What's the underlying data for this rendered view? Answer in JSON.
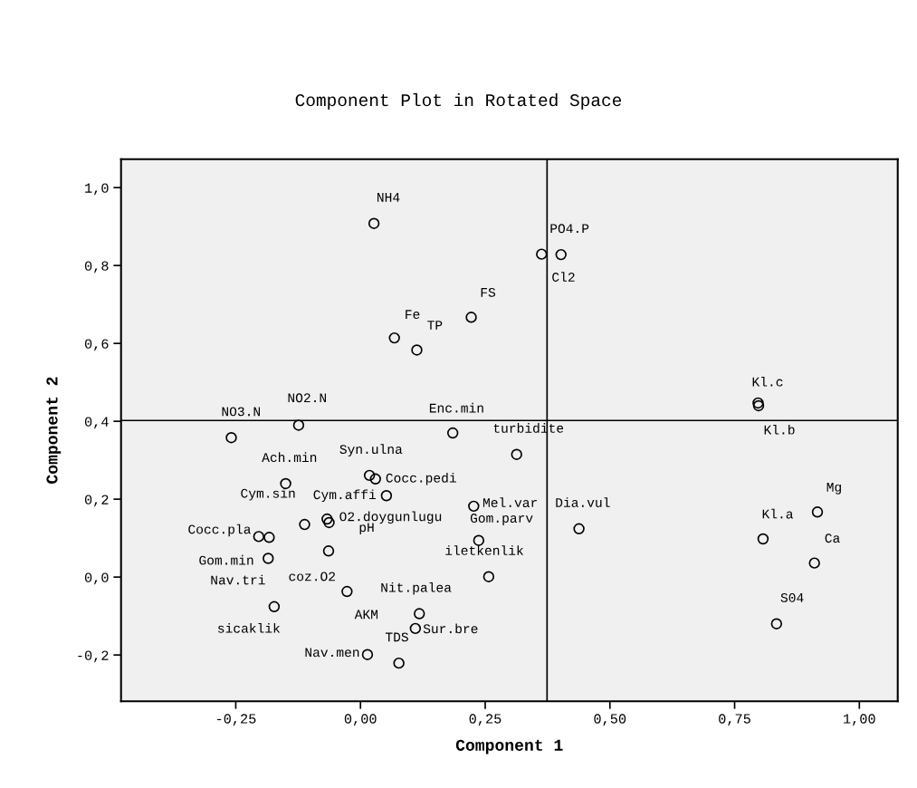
{
  "chart_data": {
    "type": "scatter",
    "title": "Component Plot in Rotated Space",
    "xlabel": "Component 1",
    "ylabel": "Component 2",
    "marker": "circle",
    "grid": false,
    "xlim": [
      -0.48,
      1.077
    ],
    "ylim": [
      -0.319,
      1.073
    ],
    "xticks": [
      {
        "value": -0.25,
        "label": "-0,25"
      },
      {
        "value": 0,
        "label": "0,00"
      },
      {
        "value": 0.25,
        "label": "0,25"
      },
      {
        "value": 0.5,
        "label": "0,50"
      },
      {
        "value": 0.75,
        "label": "0,75"
      },
      {
        "value": 1,
        "label": "1,00"
      }
    ],
    "yticks": [
      {
        "value": -0.2,
        "label": "-0,2"
      },
      {
        "value": 0,
        "label": "0,0"
      },
      {
        "value": 0.2,
        "label": "0,2"
      },
      {
        "value": 0.4,
        "label": "0,4"
      },
      {
        "value": 0.6,
        "label": "0,6"
      },
      {
        "value": 0.8,
        "label": "0,8"
      },
      {
        "value": 1,
        "label": "1,0"
      }
    ],
    "ref_lines": [
      {
        "axis": "x",
        "value": 0.374,
        "color": "#000000"
      },
      {
        "axis": "y",
        "value": 0.402,
        "color": "#000000"
      }
    ],
    "series": [
      {
        "color": "#000000",
        "x": [
          0.027,
          0.363,
          0.402,
          0.222,
          0.068,
          0.113,
          0.797,
          0.798,
          -0.259,
          -0.124,
          0.185,
          0.313,
          0.018,
          0.03,
          -0.15,
          0.052,
          0.227,
          -0.112,
          -0.063,
          -0.067,
          0.438,
          0.916,
          -0.204,
          -0.183,
          -0.185,
          0.237,
          0.807,
          -0.064,
          0.91,
          0.257,
          0.118,
          -0.027,
          0.834,
          -0.173,
          0.11,
          0.014,
          0.077
        ],
        "values": [
          0.908,
          0.829,
          0.828,
          0.667,
          0.614,
          0.583,
          0.447,
          0.44,
          0.358,
          0.39,
          0.37,
          0.315,
          0.261,
          0.252,
          0.24,
          0.209,
          0.182,
          0.135,
          0.14,
          0.149,
          0.124,
          0.167,
          0.104,
          0.102,
          0.048,
          0.094,
          0.098,
          0.067,
          0.036,
          0.001,
          -0.094,
          -0.037,
          -0.12,
          -0.076,
          -0.132,
          -0.199,
          -0.221
        ]
      }
    ],
    "annotations": [
      {
        "text": "NH4",
        "x": 0.027,
        "y": 0.908
      },
      {
        "text": "Cl2",
        "x": 0.363,
        "y": 0.829
      },
      {
        "text": "PO4.P",
        "x": 0.402,
        "y": 0.828
      },
      {
        "text": "FS",
        "x": 0.222,
        "y": 0.667
      },
      {
        "text": "Fe",
        "x": 0.068,
        "y": 0.614
      },
      {
        "text": "TP",
        "x": 0.113,
        "y": 0.583
      },
      {
        "text": "Kl.c",
        "x": 0.797,
        "y": 0.447
      },
      {
        "text": "Kl.b",
        "x": 0.798,
        "y": 0.44
      },
      {
        "text": "NO3.N",
        "x": -0.259,
        "y": 0.358
      },
      {
        "text": "NO2.N",
        "x": -0.124,
        "y": 0.39
      },
      {
        "text": "Enc.min",
        "x": 0.185,
        "y": 0.37
      },
      {
        "text": "turbidite",
        "x": 0.313,
        "y": 0.315
      },
      {
        "text": "Syn.ulna",
        "x": 0.018,
        "y": 0.261
      },
      {
        "text": "Cocc.pedi",
        "x": 0.03,
        "y": 0.252
      },
      {
        "text": "Ach.min",
        "x": -0.15,
        "y": 0.24
      },
      {
        "text": "Cym.affi",
        "x": 0.052,
        "y": 0.209
      },
      {
        "text": "Mel.var",
        "x": 0.227,
        "y": 0.182
      },
      {
        "text": "Cym.sin",
        "x": -0.112,
        "y": 0.135
      },
      {
        "text": "O2.doygunlugu",
        "x": -0.063,
        "y": 0.14
      },
      {
        "text": "pH",
        "x": -0.064,
        "y": 0.067
      },
      {
        "text": "Dia.vul",
        "x": 0.438,
        "y": 0.124
      },
      {
        "text": "Mg",
        "x": 0.916,
        "y": 0.167
      },
      {
        "text": "Cocc.pla",
        "x": -0.204,
        "y": 0.104
      },
      {
        "text": "Nav.tri",
        "x": -0.185,
        "y": 0.048
      },
      {
        "text": "Gom.min",
        "x": -0.183,
        "y": 0.102
      },
      {
        "text": "Gom.parv",
        "x": 0.237,
        "y": 0.094
      },
      {
        "text": "Kl.a",
        "x": 0.807,
        "y": 0.098
      },
      {
        "text": "coz.O2",
        "x": -0.064,
        "y": 0.067
      },
      {
        "text": "Ca",
        "x": 0.91,
        "y": 0.036
      },
      {
        "text": "iletkenlik",
        "x": 0.257,
        "y": 0.001
      },
      {
        "text": "Nit.palea",
        "x": 0.118,
        "y": -0.094
      },
      {
        "text": "AKM",
        "x": -0.027,
        "y": -0.037
      },
      {
        "text": "S04",
        "x": 0.834,
        "y": -0.12
      },
      {
        "text": "sicaklik",
        "x": -0.173,
        "y": -0.076
      },
      {
        "text": "Sur.bre",
        "x": 0.11,
        "y": -0.132
      },
      {
        "text": "Nav.men",
        "x": 0.014,
        "y": -0.199
      },
      {
        "text": "TDS",
        "x": 0.077,
        "y": -0.221
      }
    ]
  }
}
